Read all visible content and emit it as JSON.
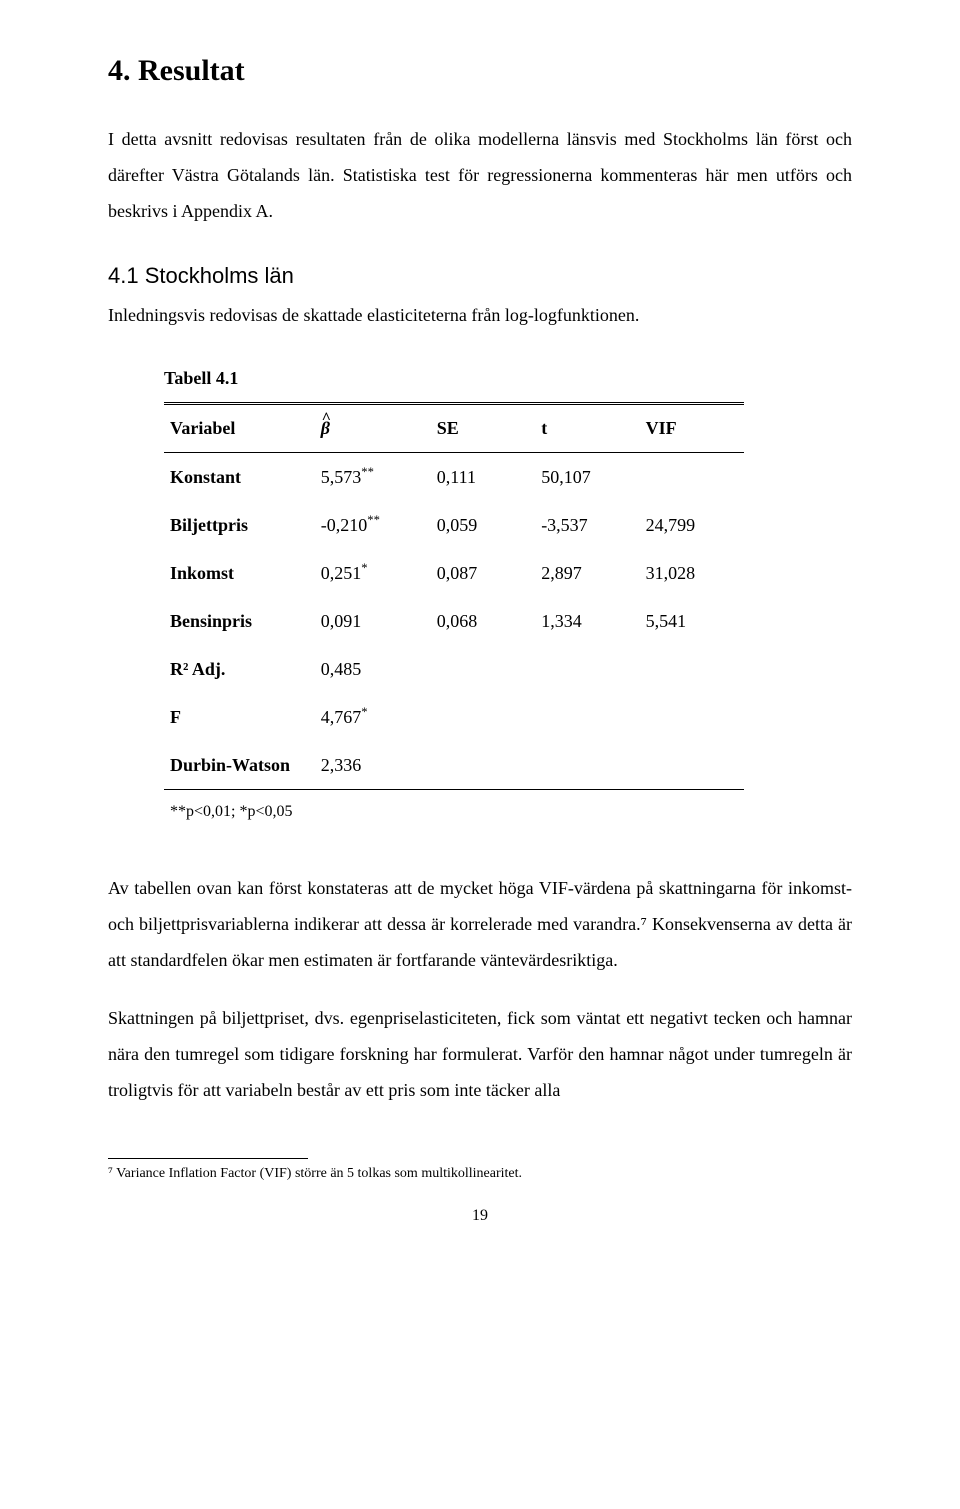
{
  "title": "4. Resultat",
  "intro": "I detta avsnitt redovisas resultaten från de olika modellerna länsvis med Stockholms län först och därefter Västra Götalands län. Statistiska test för regressionerna kommenteras här men utförs och beskrivs i Appendix A.",
  "subsection": "4.1 Stockholms län",
  "subsection_text": "Inledningsvis redovisas de skattade elasticiteterna från log-logfunktionen.",
  "table": {
    "caption": "Tabell 4.1",
    "headers": {
      "var": "Variabel",
      "beta": "β",
      "se": "SE",
      "t": "t",
      "vif": "VIF"
    },
    "rows": [
      {
        "label": "Konstant",
        "b": "5,573",
        "b_sup": "**",
        "se": "0,111",
        "t": "50,107",
        "vif": ""
      },
      {
        "label": "Biljettpris",
        "b": "-0,210",
        "b_sup": "**",
        "se": "0,059",
        "t": "-3,537",
        "vif": "24,799"
      },
      {
        "label": "Inkomst",
        "b": "0,251",
        "b_sup": "*",
        "se": "0,087",
        "t": "2,897",
        "vif": "31,028"
      },
      {
        "label": "Bensinpris",
        "b": "0,091",
        "b_sup": "",
        "se": "0,068",
        "t": "1,334",
        "vif": "5,541"
      },
      {
        "label": "R² Adj.",
        "b": "0,485",
        "b_sup": "",
        "se": "",
        "t": "",
        "vif": ""
      },
      {
        "label": "F",
        "b": "4,767",
        "b_sup": "*",
        "se": "",
        "t": "",
        "vif": ""
      },
      {
        "label": "Durbin-Watson",
        "b": "2,336",
        "b_sup": "",
        "se": "",
        "t": "",
        "vif": ""
      }
    ],
    "sig_note": "**p<0,01; *p<0,05"
  },
  "para1": "Av tabellen ovan kan först konstateras att de mycket höga VIF-värdena på skattningarna för inkomst- och biljettprisvariablerna indikerar att dessa är korrelerade med varandra.⁷ Konsekvenserna av detta är att standardfelen ökar men estimaten är fortfarande väntevärdesriktiga.",
  "para2": "Skattningen på biljettpriset, dvs. egenpriselasticiteten, fick som väntat ett negativt tecken och hamnar nära den tumregel som tidigare forskning har formulerat. Varför den hamnar något under tumregeln är troligtvis för att variabeln består av ett pris som inte täcker alla",
  "footnote": "⁷ Variance Inflation Factor (VIF) större än 5 tolkas som multikollinearitet.",
  "page_number": "19"
}
